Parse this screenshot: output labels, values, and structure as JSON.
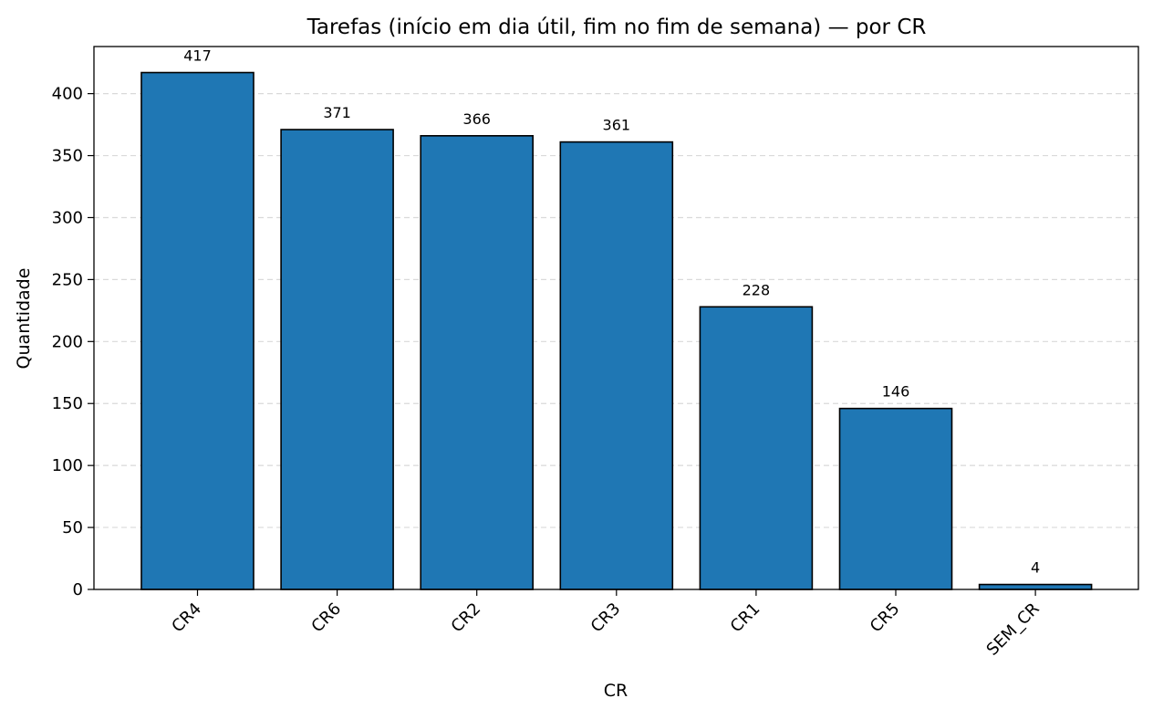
{
  "chart_data": {
    "type": "bar",
    "title": "Tarefas (início em dia útil, fim no fim de semana) — por CR",
    "xlabel": "CR",
    "ylabel": "Quantidade",
    "categories": [
      "CR4",
      "CR6",
      "CR2",
      "CR3",
      "CR1",
      "CR5",
      "SEM_CR"
    ],
    "values": [
      417,
      371,
      366,
      361,
      228,
      146,
      4
    ],
    "data_labels": [
      "417",
      "371",
      "366",
      "361",
      "228",
      "146",
      "4"
    ],
    "ylim": [
      0,
      438
    ],
    "yticks": [
      0,
      50,
      100,
      150,
      200,
      250,
      300,
      350,
      400
    ],
    "ytick_labels": [
      "0",
      "50",
      "100",
      "150",
      "200",
      "250",
      "300",
      "350",
      "400"
    ],
    "grid": "y-dashed",
    "legend": "none",
    "colors": {
      "bar_fill": "#1f77b4",
      "bar_edge": "#000000",
      "grid": "#d9d9d9",
      "axis": "#000000"
    }
  }
}
